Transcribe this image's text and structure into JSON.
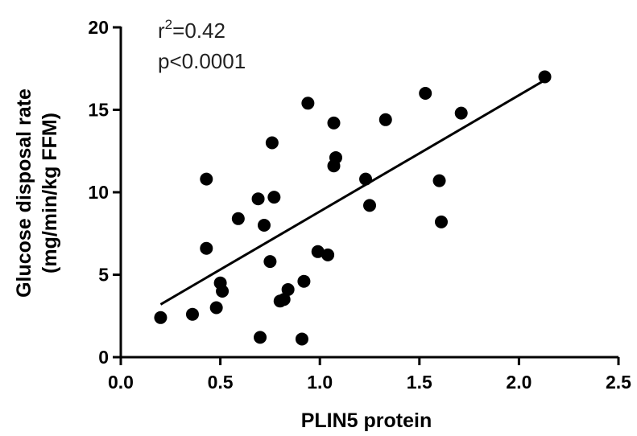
{
  "chart_data": {
    "type": "scatter",
    "xlabel": "PLIN5 protein",
    "ylabel_line1": "Glucose disposal rate",
    "ylabel_line2": "(mg/min/kg FFM)",
    "xlim": [
      0.0,
      2.5
    ],
    "ylim": [
      0,
      20
    ],
    "x_ticks": [
      "0.0",
      "0.5",
      "1.0",
      "1.5",
      "2.0",
      "2.5"
    ],
    "y_ticks": [
      "0",
      "5",
      "10",
      "15",
      "20"
    ],
    "grid": false,
    "annotation": {
      "r_symbol": "r",
      "r_exp": "2",
      "r_value": "=0.42",
      "p_text": "p<0.0001"
    },
    "points": [
      {
        "x": 0.2,
        "y": 2.4
      },
      {
        "x": 0.36,
        "y": 2.6
      },
      {
        "x": 0.43,
        "y": 10.8
      },
      {
        "x": 0.43,
        "y": 6.6
      },
      {
        "x": 0.48,
        "y": 3.0
      },
      {
        "x": 0.5,
        "y": 4.5
      },
      {
        "x": 0.51,
        "y": 4.0
      },
      {
        "x": 0.59,
        "y": 8.4
      },
      {
        "x": 0.69,
        "y": 9.6
      },
      {
        "x": 0.7,
        "y": 1.2
      },
      {
        "x": 0.72,
        "y": 8.0
      },
      {
        "x": 0.75,
        "y": 5.8
      },
      {
        "x": 0.76,
        "y": 13.0
      },
      {
        "x": 0.77,
        "y": 9.7
      },
      {
        "x": 0.8,
        "y": 3.4
      },
      {
        "x": 0.82,
        "y": 3.5
      },
      {
        "x": 0.84,
        "y": 4.1
      },
      {
        "x": 0.91,
        "y": 1.1
      },
      {
        "x": 0.92,
        "y": 4.6
      },
      {
        "x": 0.94,
        "y": 15.4
      },
      {
        "x": 0.99,
        "y": 6.4
      },
      {
        "x": 1.04,
        "y": 6.2
      },
      {
        "x": 1.07,
        "y": 14.2
      },
      {
        "x": 1.07,
        "y": 11.6
      },
      {
        "x": 1.08,
        "y": 12.1
      },
      {
        "x": 1.23,
        "y": 10.8
      },
      {
        "x": 1.25,
        "y": 9.2
      },
      {
        "x": 1.33,
        "y": 14.4
      },
      {
        "x": 1.53,
        "y": 16.0
      },
      {
        "x": 1.6,
        "y": 10.7
      },
      {
        "x": 1.61,
        "y": 8.2
      },
      {
        "x": 1.71,
        "y": 14.8
      },
      {
        "x": 2.13,
        "y": 17.0
      }
    ],
    "fit_line": {
      "x1": 0.2,
      "y1": 3.2,
      "x2": 2.13,
      "y2": 16.8
    }
  }
}
